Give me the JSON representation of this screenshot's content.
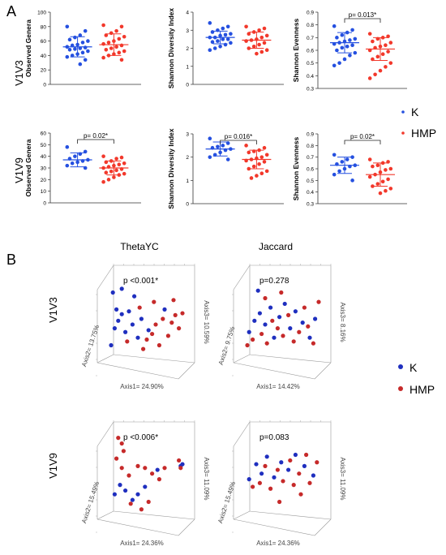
{
  "panel_labels": {
    "a": "A",
    "b": "B"
  },
  "row_labels": {
    "v1v3": "V1V3",
    "v1v9": "V1V9"
  },
  "legend_a": {
    "k": "K",
    "hmp": "HMP",
    "k_color": "#2550e0",
    "hmp_color": "#f2382b"
  },
  "legend_b": {
    "k": "K",
    "hmp": "HMP",
    "k_color": "#1f2fbf",
    "hmp_color": "#c62a2a"
  },
  "ordination_headers": {
    "thetayc": "ThetaYC",
    "jaccard": "Jaccard"
  },
  "chart_data": [
    {
      "type": "scatter",
      "panel": "A",
      "row": "V1V3",
      "ylabel": "Observed Genera",
      "ylim": [
        0,
        100
      ],
      "yticks": [
        "0",
        "20",
        "40",
        "60",
        "80",
        "100"
      ],
      "pvalue": "",
      "series": [
        {
          "name": "K",
          "mean": 52,
          "sd_low": 38,
          "sd_high": 66,
          "values": [
            80,
            74,
            68,
            65,
            62,
            60,
            58,
            55,
            54,
            52,
            51,
            50,
            49,
            48,
            46,
            44,
            42,
            40,
            38,
            34,
            28
          ]
        },
        {
          "name": "HMP",
          "mean": 55,
          "sd_low": 40,
          "sd_high": 70,
          "values": [
            82,
            80,
            74,
            71,
            68,
            66,
            63,
            60,
            58,
            56,
            54,
            52,
            50,
            48,
            46,
            44,
            42,
            40,
            37,
            34
          ]
        }
      ]
    },
    {
      "type": "scatter",
      "panel": "A",
      "row": "V1V3",
      "ylabel": "Shannon Diversity Index",
      "ylim": [
        0,
        4
      ],
      "yticks": [
        "0",
        "1",
        "2",
        "3",
        "4"
      ],
      "pvalue": "",
      "series": [
        {
          "name": "K",
          "mean": 2.6,
          "sd_low": 2.25,
          "sd_high": 2.95,
          "values": [
            3.4,
            3.2,
            3.1,
            3.0,
            2.9,
            2.8,
            2.75,
            2.7,
            2.6,
            2.6,
            2.5,
            2.5,
            2.4,
            2.35,
            2.3,
            2.2,
            2.1,
            2.0,
            1.9
          ]
        },
        {
          "name": "HMP",
          "mean": 2.45,
          "sd_low": 2.0,
          "sd_high": 2.9,
          "values": [
            3.2,
            3.1,
            3.0,
            2.9,
            2.8,
            2.7,
            2.6,
            2.5,
            2.45,
            2.4,
            2.3,
            2.2,
            2.1,
            2.0,
            1.9,
            1.8,
            1.7
          ]
        }
      ]
    },
    {
      "type": "scatter",
      "panel": "A",
      "row": "V1V3",
      "ylabel": "Shannon Evenness",
      "ylim": [
        0.3,
        0.9
      ],
      "yticks": [
        "0.3",
        "0.4",
        "0.5",
        "0.6",
        "0.7",
        "0.8",
        "0.9"
      ],
      "pvalue": "p= 0.013*",
      "series": [
        {
          "name": "K",
          "mean": 0.66,
          "sd_low": 0.58,
          "sd_high": 0.74,
          "values": [
            0.79,
            0.76,
            0.74,
            0.72,
            0.7,
            0.69,
            0.68,
            0.67,
            0.66,
            0.65,
            0.64,
            0.63,
            0.62,
            0.6,
            0.58,
            0.56,
            0.53,
            0.5,
            0.48
          ]
        },
        {
          "name": "HMP",
          "mean": 0.61,
          "sd_low": 0.52,
          "sd_high": 0.7,
          "values": [
            0.73,
            0.71,
            0.7,
            0.69,
            0.67,
            0.66,
            0.64,
            0.63,
            0.62,
            0.6,
            0.59,
            0.57,
            0.55,
            0.53,
            0.5,
            0.47,
            0.44,
            0.41,
            0.38
          ]
        }
      ]
    },
    {
      "type": "scatter",
      "panel": "A",
      "row": "V1V9",
      "ylabel": "Observed Genera",
      "ylim": [
        0,
        60
      ],
      "yticks": [
        "0",
        "10",
        "20",
        "30",
        "40",
        "50",
        "60"
      ],
      "pvalue": "p= 0.02*",
      "series": [
        {
          "name": "K",
          "mean": 37,
          "sd_low": 31,
          "sd_high": 43,
          "values": [
            48,
            44,
            42,
            40,
            38,
            37,
            36,
            35,
            34,
            32,
            30
          ]
        },
        {
          "name": "HMP",
          "mean": 30,
          "sd_low": 24,
          "sd_high": 36,
          "values": [
            40,
            39,
            38,
            36,
            35,
            34,
            33,
            32,
            31,
            30,
            29,
            28,
            27,
            26,
            25,
            24,
            22,
            20,
            18
          ]
        }
      ]
    },
    {
      "type": "scatter",
      "panel": "A",
      "row": "V1V9",
      "ylabel": "Shannon Diversity Index",
      "ylim": [
        0,
        3
      ],
      "yticks": [
        "0",
        "1",
        "2",
        "3"
      ],
      "pvalue": "p= 0.016*",
      "series": [
        {
          "name": "K",
          "mean": 2.35,
          "sd_low": 2.05,
          "sd_high": 2.65,
          "values": [
            2.8,
            2.6,
            2.5,
            2.45,
            2.4,
            2.35,
            2.3,
            2.2,
            2.1,
            2.0,
            1.9
          ]
        },
        {
          "name": "HMP",
          "mean": 1.9,
          "sd_low": 1.5,
          "sd_high": 2.3,
          "values": [
            2.5,
            2.4,
            2.3,
            2.25,
            2.2,
            2.1,
            2.0,
            1.95,
            1.9,
            1.85,
            1.8,
            1.7,
            1.6,
            1.5,
            1.4,
            1.3,
            1.2,
            1.1
          ]
        }
      ]
    },
    {
      "type": "scatter",
      "panel": "A",
      "row": "V1V9",
      "ylabel": "Shannon Evenness",
      "ylim": [
        0.3,
        0.9
      ],
      "yticks": [
        "0.3",
        "0.4",
        "0.5",
        "0.6",
        "0.7",
        "0.8",
        "0.9"
      ],
      "pvalue": "p= 0.02*",
      "series": [
        {
          "name": "K",
          "mean": 0.63,
          "sd_low": 0.56,
          "sd_high": 0.7,
          "values": [
            0.72,
            0.7,
            0.68,
            0.66,
            0.64,
            0.63,
            0.62,
            0.6,
            0.58,
            0.55,
            0.5
          ]
        },
        {
          "name": "HMP",
          "mean": 0.55,
          "sd_low": 0.45,
          "sd_high": 0.65,
          "values": [
            0.68,
            0.66,
            0.65,
            0.63,
            0.62,
            0.6,
            0.59,
            0.57,
            0.55,
            0.53,
            0.51,
            0.49,
            0.47,
            0.45,
            0.43,
            0.41,
            0.39
          ]
        }
      ]
    },
    {
      "type": "scatter",
      "panel": "B",
      "method": "ThetaYC",
      "row": "V1V3",
      "pvalue": "p <0.001*",
      "axis1": "Axis1= 24.90%",
      "axis2": "Axis2= 13.75%",
      "axis3": "Axis3= 10.59%",
      "points": [
        {
          "g": "K",
          "u": 0.1,
          "v": 0.22
        },
        {
          "g": "K",
          "u": 0.14,
          "v": 0.4
        },
        {
          "g": "K",
          "u": 0.18,
          "v": 0.48
        },
        {
          "g": "K",
          "u": 0.22,
          "v": 0.55
        },
        {
          "g": "K",
          "u": 0.26,
          "v": 0.36
        },
        {
          "g": "K",
          "u": 0.3,
          "v": 0.58
        },
        {
          "g": "K",
          "u": 0.34,
          "v": 0.44
        },
        {
          "g": "K",
          "u": 0.4,
          "v": 0.3
        },
        {
          "g": "K",
          "u": 0.44,
          "v": 0.5
        },
        {
          "g": "K",
          "u": 0.16,
          "v": 0.6
        },
        {
          "g": "K",
          "u": 0.52,
          "v": 0.38
        },
        {
          "g": "K",
          "u": 0.7,
          "v": 0.6
        },
        {
          "g": "K",
          "u": 0.12,
          "v": 0.78
        },
        {
          "g": "K",
          "u": 0.22,
          "v": 0.82
        },
        {
          "g": "K",
          "u": 0.36,
          "v": 0.74
        },
        {
          "g": "HMP",
          "u": 0.28,
          "v": 0.26
        },
        {
          "g": "HMP",
          "u": 0.46,
          "v": 0.18
        },
        {
          "g": "HMP",
          "u": 0.5,
          "v": 0.28
        },
        {
          "g": "HMP",
          "u": 0.56,
          "v": 0.34
        },
        {
          "g": "HMP",
          "u": 0.6,
          "v": 0.44
        },
        {
          "g": "HMP",
          "u": 0.64,
          "v": 0.22
        },
        {
          "g": "HMP",
          "u": 0.68,
          "v": 0.5
        },
        {
          "g": "HMP",
          "u": 0.74,
          "v": 0.32
        },
        {
          "g": "HMP",
          "u": 0.78,
          "v": 0.46
        },
        {
          "g": "HMP",
          "u": 0.82,
          "v": 0.54
        },
        {
          "g": "HMP",
          "u": 0.86,
          "v": 0.4
        },
        {
          "g": "HMP",
          "u": 0.9,
          "v": 0.56
        },
        {
          "g": "HMP",
          "u": 0.42,
          "v": 0.62
        },
        {
          "g": "HMP",
          "u": 0.58,
          "v": 0.68
        },
        {
          "g": "HMP",
          "u": 0.8,
          "v": 0.7
        }
      ]
    },
    {
      "type": "scatter",
      "panel": "B",
      "method": "Jaccard",
      "row": "V1V3",
      "pvalue": "p=0.278",
      "axis1": "Axis1= 14.42%",
      "axis2": "Axis2= 9.75%",
      "axis3": "Axis3= 8.16%",
      "points": [
        {
          "g": "K",
          "u": 0.12,
          "v": 0.36
        },
        {
          "g": "K",
          "u": 0.18,
          "v": 0.48
        },
        {
          "g": "K",
          "u": 0.24,
          "v": 0.56
        },
        {
          "g": "K",
          "u": 0.3,
          "v": 0.44
        },
        {
          "g": "K",
          "u": 0.36,
          "v": 0.62
        },
        {
          "g": "K",
          "u": 0.4,
          "v": 0.3
        },
        {
          "g": "K",
          "u": 0.46,
          "v": 0.52
        },
        {
          "g": "K",
          "u": 0.52,
          "v": 0.66
        },
        {
          "g": "K",
          "u": 0.58,
          "v": 0.4
        },
        {
          "g": "K",
          "u": 0.64,
          "v": 0.58
        },
        {
          "g": "K",
          "u": 0.72,
          "v": 0.46
        },
        {
          "g": "K",
          "u": 0.8,
          "v": 0.3
        },
        {
          "g": "K",
          "u": 0.86,
          "v": 0.5
        },
        {
          "g": "K",
          "u": 0.22,
          "v": 0.8
        },
        {
          "g": "HMP",
          "u": 0.1,
          "v": 0.22
        },
        {
          "g": "HMP",
          "u": 0.16,
          "v": 0.28
        },
        {
          "g": "HMP",
          "u": 0.26,
          "v": 0.34
        },
        {
          "g": "HMP",
          "u": 0.32,
          "v": 0.24
        },
        {
          "g": "HMP",
          "u": 0.38,
          "v": 0.48
        },
        {
          "g": "HMP",
          "u": 0.44,
          "v": 0.4
        },
        {
          "g": "HMP",
          "u": 0.5,
          "v": 0.32
        },
        {
          "g": "HMP",
          "u": 0.56,
          "v": 0.54
        },
        {
          "g": "HMP",
          "u": 0.62,
          "v": 0.26
        },
        {
          "g": "HMP",
          "u": 0.68,
          "v": 0.36
        },
        {
          "g": "HMP",
          "u": 0.74,
          "v": 0.62
        },
        {
          "g": "HMP",
          "u": 0.78,
          "v": 0.42
        },
        {
          "g": "HMP",
          "u": 0.84,
          "v": 0.24
        },
        {
          "g": "HMP",
          "u": 0.9,
          "v": 0.68
        },
        {
          "g": "HMP",
          "u": 0.3,
          "v": 0.72
        },
        {
          "g": "HMP",
          "u": 0.48,
          "v": 0.78
        }
      ]
    },
    {
      "type": "scatter",
      "panel": "B",
      "method": "ThetaYC",
      "row": "V1V9",
      "pvalue": "p <0.006*",
      "axis1": "Axis1= 24.36%",
      "axis2": "Axis2= 15.49%",
      "axis3": "Axis3= 11.09%",
      "points": [
        {
          "g": "K",
          "u": 0.14,
          "v": 0.3
        },
        {
          "g": "K",
          "u": 0.2,
          "v": 0.4
        },
        {
          "g": "K",
          "u": 0.26,
          "v": 0.34
        },
        {
          "g": "K",
          "u": 0.34,
          "v": 0.24
        },
        {
          "g": "K",
          "u": 0.4,
          "v": 0.3
        },
        {
          "g": "K",
          "u": 0.48,
          "v": 0.38
        },
        {
          "g": "K",
          "u": 0.62,
          "v": 0.56
        },
        {
          "g": "K",
          "u": 0.88,
          "v": 0.6
        },
        {
          "g": "K",
          "u": 0.9,
          "v": 0.62
        },
        {
          "g": "HMP",
          "u": 0.18,
          "v": 0.9
        },
        {
          "g": "HMP",
          "u": 0.22,
          "v": 0.84
        },
        {
          "g": "HMP",
          "u": 0.24,
          "v": 0.76
        },
        {
          "g": "HMP",
          "u": 0.16,
          "v": 0.68
        },
        {
          "g": "HMP",
          "u": 0.22,
          "v": 0.58
        },
        {
          "g": "HMP",
          "u": 0.3,
          "v": 0.5
        },
        {
          "g": "HMP",
          "u": 0.4,
          "v": 0.6
        },
        {
          "g": "HMP",
          "u": 0.48,
          "v": 0.58
        },
        {
          "g": "HMP",
          "u": 0.56,
          "v": 0.52
        },
        {
          "g": "HMP",
          "u": 0.64,
          "v": 0.46
        },
        {
          "g": "HMP",
          "u": 0.32,
          "v": 0.2
        },
        {
          "g": "HMP",
          "u": 0.44,
          "v": 0.14
        },
        {
          "g": "HMP",
          "u": 0.52,
          "v": 0.22
        },
        {
          "g": "HMP",
          "u": 0.7,
          "v": 0.58
        },
        {
          "g": "HMP",
          "u": 0.86,
          "v": 0.66
        },
        {
          "g": "HMP",
          "u": 0.88,
          "v": 0.58
        }
      ]
    },
    {
      "type": "scatter",
      "panel": "B",
      "method": "Jaccard",
      "row": "V1V9",
      "pvalue": "p=0.083",
      "axis1": "Axis1= 24.36%",
      "axis2": "Axis2= 15.49%",
      "axis3": "Axis3= 11.09%",
      "points": [
        {
          "g": "K",
          "u": 0.12,
          "v": 0.46
        },
        {
          "g": "K",
          "u": 0.2,
          "v": 0.62
        },
        {
          "g": "K",
          "u": 0.26,
          "v": 0.52
        },
        {
          "g": "K",
          "u": 0.32,
          "v": 0.7
        },
        {
          "g": "K",
          "u": 0.4,
          "v": 0.48
        },
        {
          "g": "K",
          "u": 0.48,
          "v": 0.64
        },
        {
          "g": "K",
          "u": 0.56,
          "v": 0.56
        },
        {
          "g": "K",
          "u": 0.64,
          "v": 0.72
        },
        {
          "g": "K",
          "u": 0.74,
          "v": 0.6
        },
        {
          "g": "K",
          "u": 0.84,
          "v": 0.5
        },
        {
          "g": "HMP",
          "u": 0.16,
          "v": 0.38
        },
        {
          "g": "HMP",
          "u": 0.24,
          "v": 0.42
        },
        {
          "g": "HMP",
          "u": 0.3,
          "v": 0.6
        },
        {
          "g": "HMP",
          "u": 0.36,
          "v": 0.36
        },
        {
          "g": "HMP",
          "u": 0.44,
          "v": 0.56
        },
        {
          "g": "HMP",
          "u": 0.5,
          "v": 0.44
        },
        {
          "g": "HMP",
          "u": 0.58,
          "v": 0.66
        },
        {
          "g": "HMP",
          "u": 0.62,
          "v": 0.4
        },
        {
          "g": "HMP",
          "u": 0.68,
          "v": 0.52
        },
        {
          "g": "HMP",
          "u": 0.76,
          "v": 0.72
        },
        {
          "g": "HMP",
          "u": 0.8,
          "v": 0.42
        },
        {
          "g": "HMP",
          "u": 0.88,
          "v": 0.64
        },
        {
          "g": "HMP",
          "u": 0.46,
          "v": 0.22
        },
        {
          "g": "HMP",
          "u": 0.7,
          "v": 0.3
        }
      ]
    }
  ]
}
